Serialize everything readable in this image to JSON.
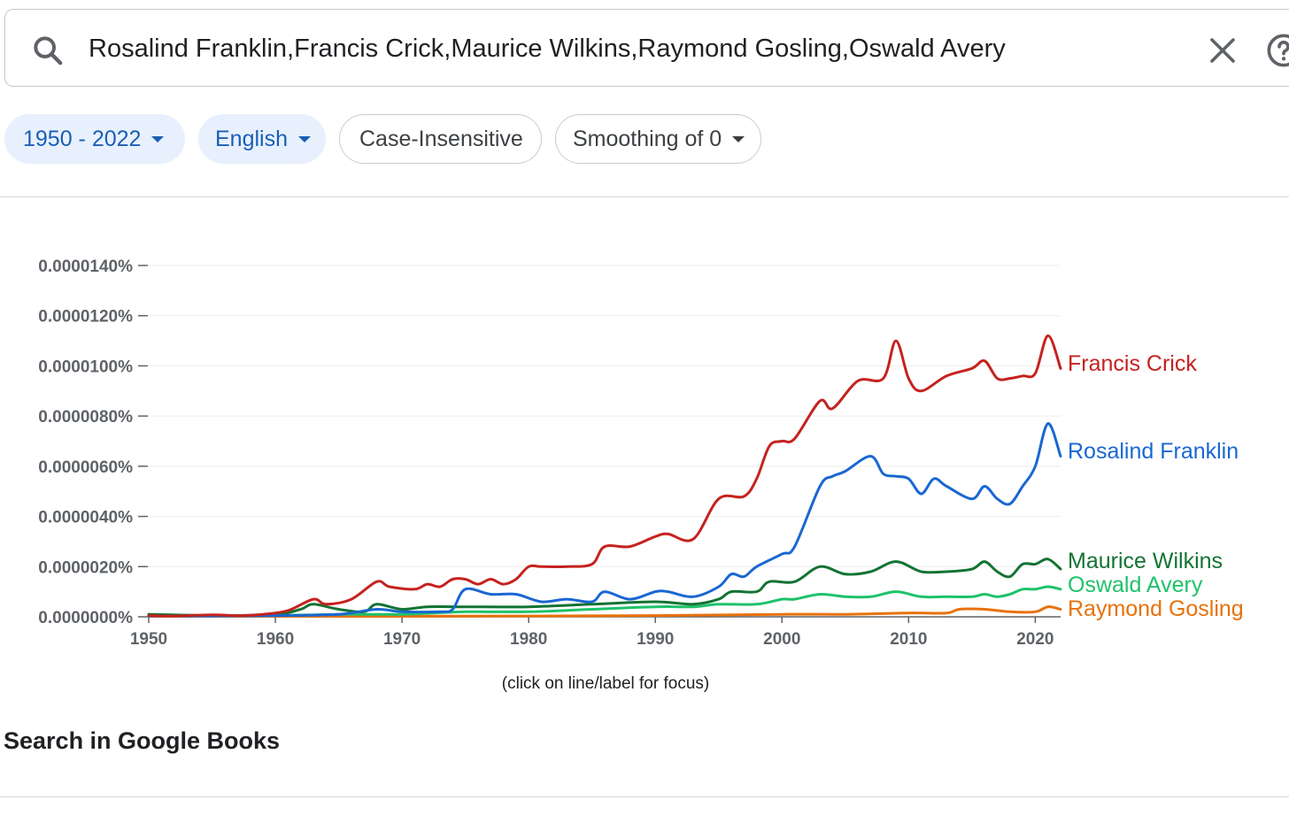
{
  "search": {
    "query": "Rosalind Franklin,Francis Crick,Maurice Wilkins,Raymond Gosling,Oswald Avery",
    "icon": "search-icon",
    "clear_icon": "close-icon",
    "help_icon": "help-icon"
  },
  "filters": {
    "year_range": "1950 - 2022",
    "language": "English",
    "case": "Case-Insensitive",
    "smoothing": "Smoothing of 0"
  },
  "chart_note": "(click on line/label for focus)",
  "section_title": "Search in Google Books",
  "colors": {
    "chip_fill": "#e8f0fe",
    "chip_text": "#1a5fb4"
  },
  "chart_data": {
    "type": "line",
    "title": "",
    "xlabel": "",
    "ylabel": "",
    "xlim": [
      1950,
      2022
    ],
    "ylim": [
      0,
      1.4e-05
    ],
    "grid": true,
    "legend": "right-end-labels",
    "x_ticks": [
      "1950",
      "1960",
      "1970",
      "1980",
      "1990",
      "2000",
      "2010",
      "2020"
    ],
    "y_ticks": [
      "0.0000000%",
      "0.0000020%",
      "0.0000040%",
      "0.0000060%",
      "0.0000080%",
      "0.0000100%",
      "0.0000120%",
      "0.0000140%"
    ],
    "series": [
      {
        "name": "Francis Crick",
        "color": "#c5221f",
        "points": [
          [
            1950,
            5e-08
          ],
          [
            1952,
            3e-08
          ],
          [
            1955,
            8e-08
          ],
          [
            1957,
            5e-08
          ],
          [
            1959,
            1e-07
          ],
          [
            1961,
            2.5e-07
          ],
          [
            1963,
            7e-07
          ],
          [
            1964,
            5e-07
          ],
          [
            1966,
            7e-07
          ],
          [
            1968,
            1.4e-06
          ],
          [
            1969,
            1.2e-06
          ],
          [
            1971,
            1.1e-06
          ],
          [
            1972,
            1.3e-06
          ],
          [
            1973,
            1.2e-06
          ],
          [
            1974,
            1.5e-06
          ],
          [
            1975,
            1.5e-06
          ],
          [
            1976,
            1.3e-06
          ],
          [
            1977,
            1.5e-06
          ],
          [
            1978,
            1.3e-06
          ],
          [
            1979,
            1.5e-06
          ],
          [
            1980,
            2e-06
          ],
          [
            1981,
            2e-06
          ],
          [
            1983,
            2e-06
          ],
          [
            1985,
            2.1e-06
          ],
          [
            1986,
            2.8e-06
          ],
          [
            1988,
            2.8e-06
          ],
          [
            1990,
            3.2e-06
          ],
          [
            1991,
            3.3e-06
          ],
          [
            1993,
            3.1e-06
          ],
          [
            1995,
            4.7e-06
          ],
          [
            1997,
            4.8e-06
          ],
          [
            1998,
            5.5e-06
          ],
          [
            1999,
            6.8e-06
          ],
          [
            2000,
            7e-06
          ],
          [
            2001,
            7.1e-06
          ],
          [
            2003,
            8.6e-06
          ],
          [
            2004,
            8.3e-06
          ],
          [
            2006,
            9.4e-06
          ],
          [
            2008,
            9.5e-06
          ],
          [
            2009,
            1.1e-05
          ],
          [
            2010,
            9.5e-06
          ],
          [
            2011,
            9e-06
          ],
          [
            2013,
            9.6e-06
          ],
          [
            2015,
            9.9e-06
          ],
          [
            2016,
            1.02e-05
          ],
          [
            2017,
            9.5e-06
          ],
          [
            2018,
            9.5e-06
          ],
          [
            2019,
            9.6e-06
          ],
          [
            2020,
            9.7e-06
          ],
          [
            2021,
            1.12e-05
          ],
          [
            2022,
            9.9e-06
          ]
        ]
      },
      {
        "name": "Rosalind Franklin",
        "color": "#1967d2",
        "points": [
          [
            1950,
            3e-08
          ],
          [
            1955,
            3e-08
          ],
          [
            1960,
            5e-08
          ],
          [
            1965,
            1e-07
          ],
          [
            1968,
            3e-07
          ],
          [
            1970,
            2e-07
          ],
          [
            1973,
            2e-07
          ],
          [
            1974,
            3e-07
          ],
          [
            1975,
            1.1e-06
          ],
          [
            1977,
            9e-07
          ],
          [
            1979,
            9e-07
          ],
          [
            1981,
            6e-07
          ],
          [
            1983,
            7e-07
          ],
          [
            1985,
            6e-07
          ],
          [
            1986,
            1e-06
          ],
          [
            1988,
            7e-07
          ],
          [
            1990,
            1e-06
          ],
          [
            1991,
            1e-06
          ],
          [
            1993,
            8e-07
          ],
          [
            1995,
            1.2e-06
          ],
          [
            1996,
            1.7e-06
          ],
          [
            1997,
            1.6e-06
          ],
          [
            1998,
            2e-06
          ],
          [
            2000,
            2.5e-06
          ],
          [
            2001,
            2.8e-06
          ],
          [
            2003,
            5.2e-06
          ],
          [
            2004,
            5.6e-06
          ],
          [
            2005,
            5.8e-06
          ],
          [
            2007,
            6.4e-06
          ],
          [
            2008,
            5.7e-06
          ],
          [
            2009,
            5.6e-06
          ],
          [
            2010,
            5.5e-06
          ],
          [
            2011,
            4.9e-06
          ],
          [
            2012,
            5.5e-06
          ],
          [
            2013,
            5.2e-06
          ],
          [
            2015,
            4.7e-06
          ],
          [
            2016,
            5.2e-06
          ],
          [
            2017,
            4.7e-06
          ],
          [
            2018,
            4.5e-06
          ],
          [
            2019,
            5.2e-06
          ],
          [
            2020,
            6e-06
          ],
          [
            2021,
            7.7e-06
          ],
          [
            2022,
            6.4e-06
          ]
        ]
      },
      {
        "name": "Maurice Wilkins",
        "color": "#137333",
        "points": [
          [
            1950,
            1e-07
          ],
          [
            1955,
            5e-08
          ],
          [
            1960,
            1e-07
          ],
          [
            1962,
            3e-07
          ],
          [
            1963,
            5e-07
          ],
          [
            1965,
            3e-07
          ],
          [
            1967,
            2e-07
          ],
          [
            1968,
            5e-07
          ],
          [
            1970,
            3e-07
          ],
          [
            1972,
            4e-07
          ],
          [
            1975,
            4e-07
          ],
          [
            1980,
            4e-07
          ],
          [
            1985,
            5e-07
          ],
          [
            1990,
            6e-07
          ],
          [
            1993,
            5e-07
          ],
          [
            1995,
            7e-07
          ],
          [
            1996,
            1e-06
          ],
          [
            1998,
            1e-06
          ],
          [
            1999,
            1.4e-06
          ],
          [
            2001,
            1.4e-06
          ],
          [
            2003,
            2e-06
          ],
          [
            2005,
            1.7e-06
          ],
          [
            2007,
            1.8e-06
          ],
          [
            2009,
            2.2e-06
          ],
          [
            2011,
            1.8e-06
          ],
          [
            2013,
            1.8e-06
          ],
          [
            2015,
            1.9e-06
          ],
          [
            2016,
            2.2e-06
          ],
          [
            2017,
            1.8e-06
          ],
          [
            2018,
            1.6e-06
          ],
          [
            2019,
            2.1e-06
          ],
          [
            2020,
            2.1e-06
          ],
          [
            2021,
            2.3e-06
          ],
          [
            2022,
            1.9e-06
          ]
        ]
      },
      {
        "name": "Oswald Avery",
        "color": "#1ec26a",
        "points": [
          [
            1950,
            1e-07
          ],
          [
            1955,
            5e-08
          ],
          [
            1960,
            5e-08
          ],
          [
            1965,
            1e-07
          ],
          [
            1970,
            1e-07
          ],
          [
            1975,
            2e-07
          ],
          [
            1980,
            2e-07
          ],
          [
            1985,
            3e-07
          ],
          [
            1990,
            4e-07
          ],
          [
            1993,
            4e-07
          ],
          [
            1995,
            5e-07
          ],
          [
            1998,
            5e-07
          ],
          [
            2000,
            7e-07
          ],
          [
            2001,
            7e-07
          ],
          [
            2003,
            9e-07
          ],
          [
            2005,
            8e-07
          ],
          [
            2007,
            8e-07
          ],
          [
            2009,
            1e-06
          ],
          [
            2011,
            8e-07
          ],
          [
            2013,
            8e-07
          ],
          [
            2015,
            8e-07
          ],
          [
            2016,
            9e-07
          ],
          [
            2017,
            8e-07
          ],
          [
            2018,
            9e-07
          ],
          [
            2019,
            1.1e-06
          ],
          [
            2020,
            1.1e-06
          ],
          [
            2021,
            1.2e-06
          ],
          [
            2022,
            1.1e-06
          ]
        ]
      },
      {
        "name": "Raymond Gosling",
        "color": "#e8710a",
        "points": [
          [
            1950,
            2e-08
          ],
          [
            1960,
            2e-08
          ],
          [
            1970,
            2e-08
          ],
          [
            1980,
            3e-08
          ],
          [
            1990,
            5e-08
          ],
          [
            2000,
            1e-07
          ],
          [
            2005,
            1e-07
          ],
          [
            2010,
            1.5e-07
          ],
          [
            2013,
            1.5e-07
          ],
          [
            2014,
            3e-07
          ],
          [
            2016,
            3e-07
          ],
          [
            2018,
            2e-07
          ],
          [
            2020,
            2e-07
          ],
          [
            2021,
            4e-07
          ],
          [
            2022,
            3e-07
          ]
        ]
      }
    ]
  }
}
